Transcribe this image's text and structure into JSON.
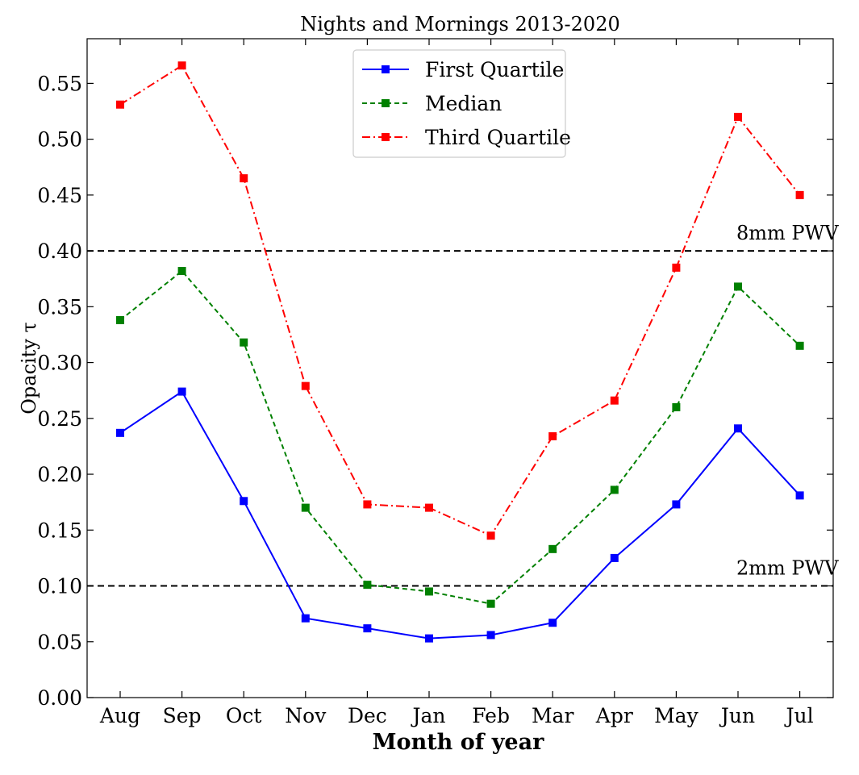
{
  "chart_data": {
    "type": "line",
    "title": "Nights and Mornings 2013-2020",
    "xlabel": "Month of year",
    "ylabel": "Opacity τ",
    "categories": [
      "Aug",
      "Sep",
      "Oct",
      "Nov",
      "Dec",
      "Jan",
      "Feb",
      "Mar",
      "Apr",
      "May",
      "Jun",
      "Jul"
    ],
    "ylim": [
      0,
      0.59
    ],
    "yticks": [
      "0.00",
      "0.05",
      "0.10",
      "0.15",
      "0.20",
      "0.25",
      "0.30",
      "0.35",
      "0.40",
      "0.45",
      "0.50",
      "0.55"
    ],
    "grid": false,
    "legend_position": "top-center",
    "series": [
      {
        "name": "First Quartile",
        "color": "#0000ff",
        "dash": "solid",
        "marker": "square",
        "values": [
          0.237,
          0.274,
          0.176,
          0.071,
          0.062,
          0.053,
          0.056,
          0.067,
          0.125,
          0.173,
          0.241,
          0.181
        ]
      },
      {
        "name": "Median",
        "color": "#008000",
        "dash": "dashed",
        "marker": "square",
        "values": [
          0.338,
          0.382,
          0.318,
          0.17,
          0.101,
          0.095,
          0.084,
          0.133,
          0.186,
          0.26,
          0.368,
          0.315
        ]
      },
      {
        "name": "Third Quartile",
        "color": "#ff0000",
        "dash": "dashdot",
        "marker": "square",
        "values": [
          0.531,
          0.566,
          0.465,
          0.279,
          0.173,
          0.17,
          0.145,
          0.234,
          0.266,
          0.385,
          0.52,
          0.45
        ]
      }
    ],
    "reference_lines": [
      {
        "y": 0.4,
        "label": "8mm PWV",
        "color": "#000000"
      },
      {
        "y": 0.1,
        "label": "2mm PWV",
        "color": "#000000"
      }
    ]
  }
}
